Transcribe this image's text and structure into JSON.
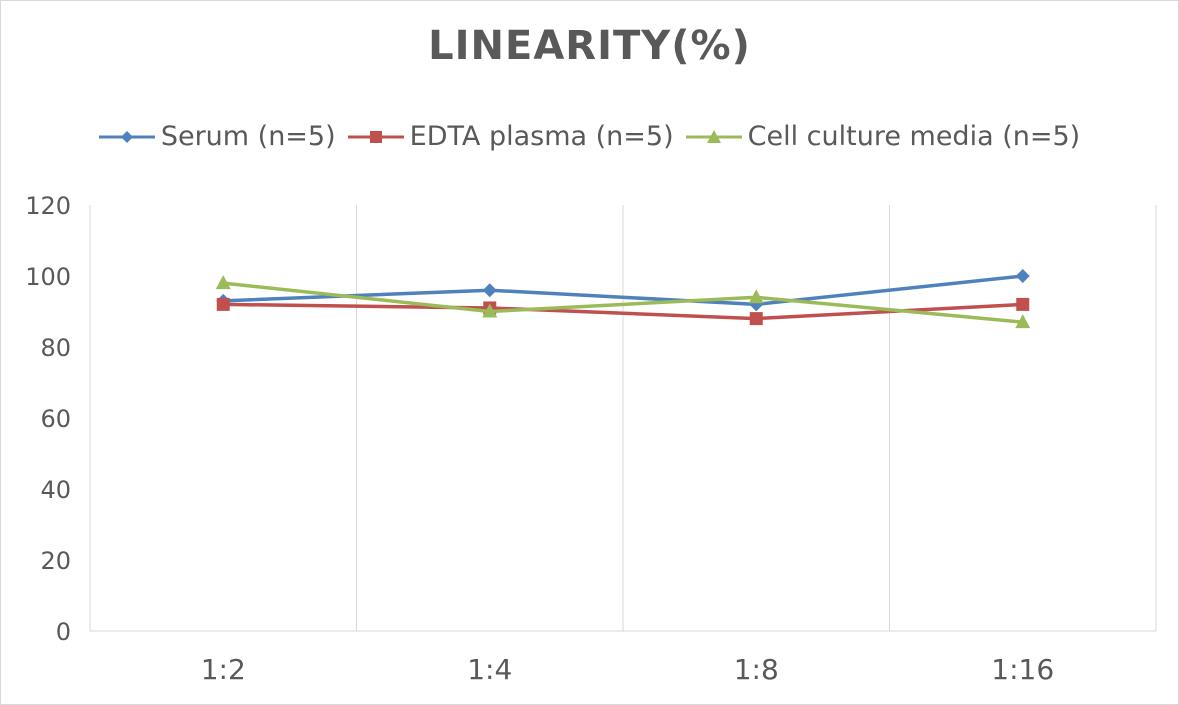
{
  "chart_data": {
    "type": "line",
    "title": "LINEARITY(%)",
    "xlabel": "",
    "ylabel": "",
    "categories": [
      "1:2",
      "1:4",
      "1:8",
      "1:16"
    ],
    "ylim": [
      0,
      120
    ],
    "yticks": [
      0,
      20,
      40,
      60,
      80,
      100,
      120
    ],
    "grid": "vertical",
    "legend_position": "top",
    "series": [
      {
        "name": "Serum (n=5)",
        "values": [
          93,
          96,
          92,
          100
        ],
        "color": "#4f81bd",
        "marker": "diamond"
      },
      {
        "name": "EDTA plasma (n=5)",
        "values": [
          92,
          91,
          88,
          92
        ],
        "color": "#c0504d",
        "marker": "square"
      },
      {
        "name": "Cell culture media (n=5)",
        "values": [
          98,
          90,
          94,
          87
        ],
        "color": "#9bbb59",
        "marker": "triangle"
      }
    ]
  }
}
